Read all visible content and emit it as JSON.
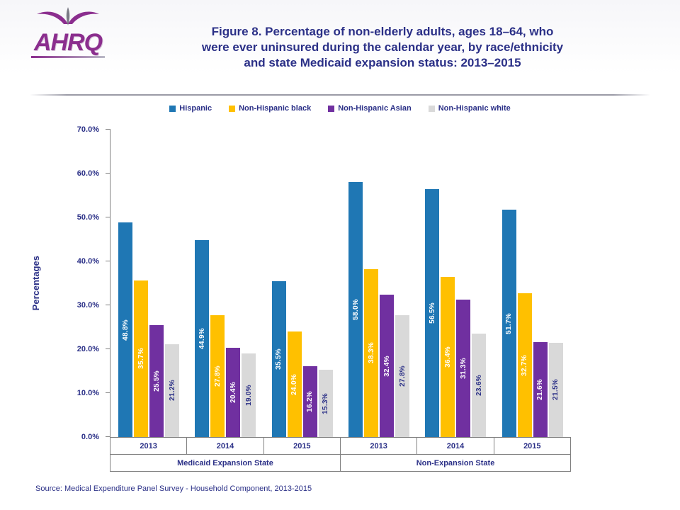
{
  "header": {
    "logo_text": "AHRQ",
    "title_lines": [
      "Figure 8. Percentage of non-elderly adults, ages 18–64, who",
      "were ever uninsured during the calendar year, by race/ethnicity",
      "and state Medicaid expansion status: 2013–2015"
    ]
  },
  "colors": {
    "navy": "#2B3087",
    "source_blue": "#2B3087",
    "axis_line": "#808080",
    "logo_purple": "#8B2E8E"
  },
  "chart_data": {
    "type": "bar",
    "title": "Figure 8. Percentage of non-elderly adults, ages 18–64, who were ever uninsured during the calendar year, by race/ethnicity and state Medicaid expansion status: 2013–2015",
    "xlabel": "",
    "ylabel": "Percentages",
    "ylim": [
      0,
      70
    ],
    "ytick_step": 10,
    "ytick_labels": [
      "0.0%",
      "10.0%",
      "20.0%",
      "30.0%",
      "40.0%",
      "50.0%",
      "60.0%",
      "70.0%"
    ],
    "grid": false,
    "legend_position": "top",
    "categories": [
      "2013",
      "2014",
      "2015",
      "2013",
      "2014",
      "2015"
    ],
    "group_labels": [
      "Medicaid Expansion State",
      "Non-Expansion State"
    ],
    "series": [
      {
        "name": "Hispanic",
        "color": "#1F77B4",
        "label_color": "#FFFFFF",
        "values": [
          48.8,
          44.9,
          35.5,
          58.0,
          56.5,
          51.7
        ],
        "labels": [
          "48.8%",
          "44.9%",
          "35.5%",
          "58.0%",
          "56.5%",
          "51.7%"
        ]
      },
      {
        "name": "Non-Hispanic black",
        "color": "#FFC000",
        "label_color": "#FFFFFF",
        "values": [
          35.7,
          27.8,
          24.0,
          38.3,
          36.4,
          32.7
        ],
        "labels": [
          "35.7%",
          "27.8%",
          "24.0%",
          "38.3%",
          "36.4%",
          "32.7%"
        ]
      },
      {
        "name": "Non-Hispanic Asian",
        "color": "#7030A0",
        "label_color": "#FFFFFF",
        "values": [
          25.5,
          20.4,
          16.2,
          32.4,
          31.3,
          21.6
        ],
        "labels": [
          "25.5%",
          "20.4%",
          "16.2%",
          "32.4%",
          "31.3%",
          "21.6%"
        ]
      },
      {
        "name": "Non-Hispanic white",
        "color": "#D9D9D9",
        "label_color": "#2B3087",
        "values": [
          21.2,
          19.0,
          15.3,
          27.8,
          23.6,
          21.5
        ],
        "labels": [
          "21.2%",
          "19.0%",
          "15.3%",
          "27.8%",
          "23.6%",
          "21.5%"
        ]
      }
    ]
  },
  "source": "Source:  Medical Expenditure Panel Survey  - Household Component, 2013-2015"
}
